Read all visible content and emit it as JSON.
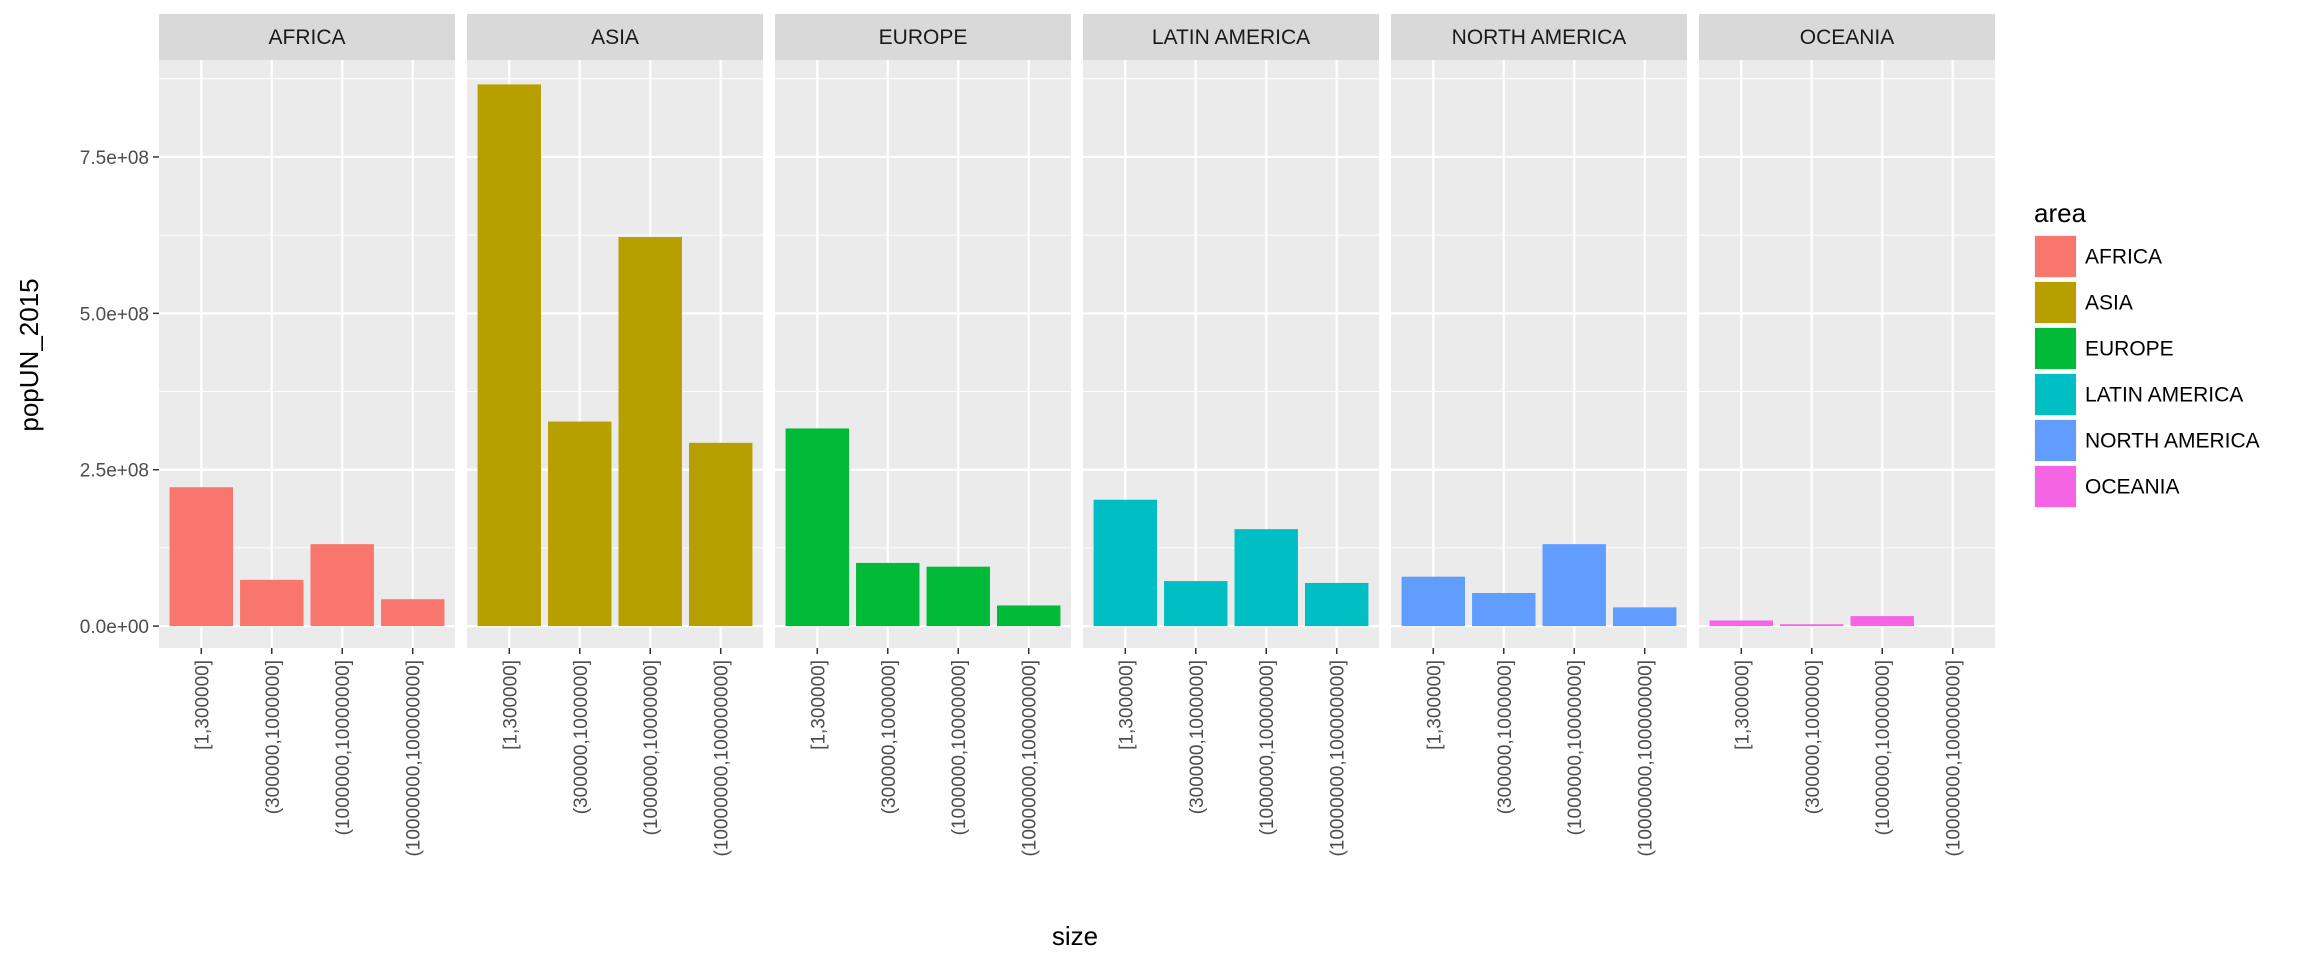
{
  "chart_data": {
    "type": "bar",
    "facet_by": "area",
    "xlabel": "size",
    "ylabel": "popUN_2015",
    "categories": [
      "[1,300000]",
      "(300000,1000000]",
      "(1000000,10000000]",
      "(10000000,100000000]"
    ],
    "ylim": [
      -35000000,
      905000000
    ],
    "yticks": [
      0,
      250000000,
      500000000,
      750000000
    ],
    "ytick_labels": [
      "0.0e+00",
      "2.5e+08",
      "5.0e+08",
      "7.5e+08"
    ],
    "grid": true,
    "legend": {
      "title": "area",
      "position": "right",
      "entries": [
        "AFRICA",
        "ASIA",
        "EUROPE",
        "LATIN AMERICA",
        "NORTH AMERICA",
        "OCEANIA"
      ]
    },
    "series": [
      {
        "name": "AFRICA",
        "color": "#F8766D",
        "values": [
          222000000,
          74000000,
          131000000,
          43000000
        ]
      },
      {
        "name": "ASIA",
        "color": "#B79F00",
        "values": [
          866000000,
          327000000,
          622000000,
          293000000
        ]
      },
      {
        "name": "EUROPE",
        "color": "#00BA38",
        "values": [
          316000000,
          101000000,
          95000000,
          33000000
        ]
      },
      {
        "name": "LATIN AMERICA",
        "color": "#00BFC4",
        "values": [
          202000000,
          72000000,
          155000000,
          69000000
        ]
      },
      {
        "name": "NORTH AMERICA",
        "color": "#619CFF",
        "values": [
          79000000,
          53000000,
          131000000,
          30000000
        ]
      },
      {
        "name": "OCEANIA",
        "color": "#F564E3",
        "values": [
          9000000,
          3000000,
          16000000,
          0
        ]
      }
    ]
  }
}
